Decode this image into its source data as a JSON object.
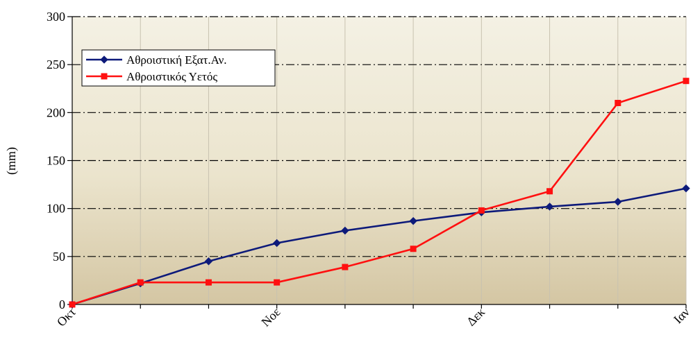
{
  "chart_data": {
    "type": "line",
    "title": "",
    "ylabel": "(mm)",
    "xlabel": "",
    "ylim": [
      0,
      300
    ],
    "yticks": [
      0,
      50,
      100,
      150,
      200,
      250,
      300
    ],
    "x": [
      0,
      1,
      2,
      3,
      4,
      5,
      6,
      7,
      8,
      9
    ],
    "xtick_labels": [
      {
        "x": 0,
        "label": "Οκτ"
      },
      {
        "x": 3,
        "label": "Νοε"
      },
      {
        "x": 6,
        "label": "Δεκ"
      },
      {
        "x": 9,
        "label": "Ιαν"
      }
    ],
    "grid": true,
    "legend_position": "top-left",
    "series": [
      {
        "name": "Αθροιστική Εξατ.Αν.",
        "color": "#0d1a7a",
        "marker": "diamond",
        "values": [
          0,
          22,
          45,
          64,
          77,
          87,
          96,
          102,
          107,
          121
        ]
      },
      {
        "name": "Αθροιστικός Υετός",
        "color": "#ff1010",
        "marker": "square",
        "values": [
          0,
          23,
          23,
          23,
          39,
          58,
          98,
          118,
          210,
          233
        ]
      }
    ]
  }
}
